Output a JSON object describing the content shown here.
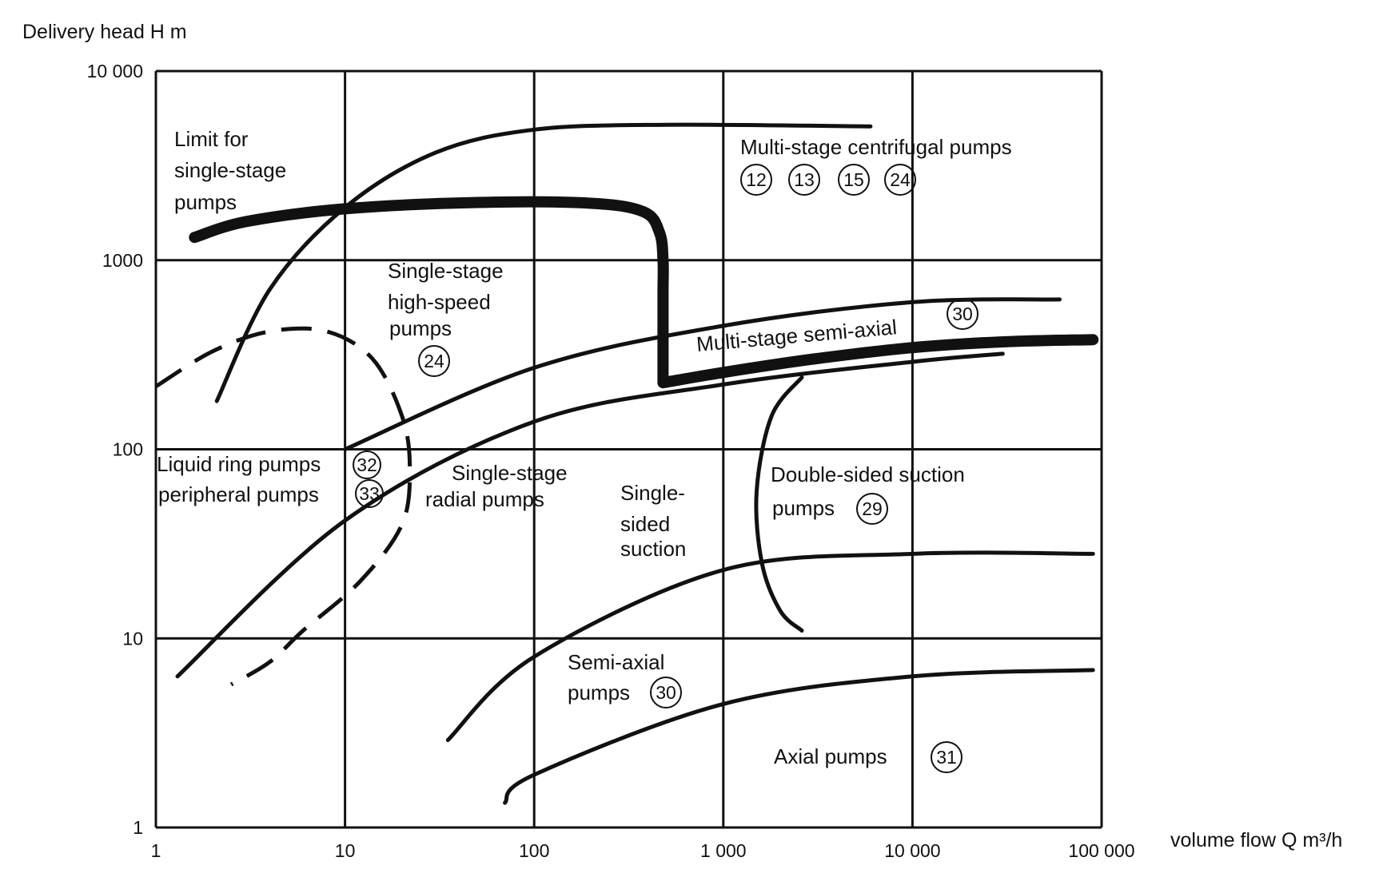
{
  "chart_data": {
    "type": "line",
    "title": "",
    "ylabel": "Delivery head H m",
    "xlabel": "volume flow Q m³/h",
    "x_scale": "log",
    "y_scale": "log",
    "xlim": [
      1,
      100000
    ],
    "ylim": [
      1,
      10000
    ],
    "grid": true,
    "x_ticks": [
      {
        "value": 1,
        "label": "1"
      },
      {
        "value": 10,
        "label": "10"
      },
      {
        "value": 100,
        "label": "100"
      },
      {
        "value": 1000,
        "label": "1 000"
      },
      {
        "value": 10000,
        "label": "10 000"
      },
      {
        "value": 100000,
        "label": "100 000"
      }
    ],
    "y_ticks": [
      {
        "value": 1,
        "label": "1"
      },
      {
        "value": 10,
        "label": "10"
      },
      {
        "value": 100,
        "label": "100"
      },
      {
        "value": 1000,
        "label": "1000"
      },
      {
        "value": 10000,
        "label": "10 000"
      }
    ],
    "curves": [
      {
        "id": "limit-single-stage",
        "style": "heavy",
        "points": [
          [
            1.6,
            1320
          ],
          [
            3,
            1600
          ],
          [
            10,
            1870
          ],
          [
            50,
            2020
          ],
          [
            200,
            2000
          ],
          [
            380,
            1800
          ],
          [
            460,
            1400
          ],
          [
            480,
            1000
          ],
          [
            480,
            700
          ],
          [
            480,
            500
          ],
          [
            480,
            360
          ],
          [
            480,
            250
          ],
          [
            480,
            225
          ]
        ]
      },
      {
        "id": "multi-stage-lower-boundary",
        "style": "heavy",
        "points": [
          [
            480,
            225
          ],
          [
            1000,
            255
          ],
          [
            3000,
            300
          ],
          [
            10000,
            345
          ],
          [
            30000,
            370
          ],
          [
            90000,
            380
          ]
        ]
      },
      {
        "id": "multi-stage-upper",
        "style": "normal",
        "points": [
          [
            2.1,
            180
          ],
          [
            4,
            700
          ],
          [
            10,
            1900
          ],
          [
            30,
            3700
          ],
          [
            100,
            4900
          ],
          [
            500,
            5200
          ],
          [
            6000,
            5100
          ]
        ]
      },
      {
        "id": "semi-axial-upper",
        "style": "normal",
        "points": [
          [
            10,
            100
          ],
          [
            100,
            270
          ],
          [
            1000,
            450
          ],
          [
            10000,
            600
          ],
          [
            60000,
            620
          ]
        ]
      },
      {
        "id": "single-stage-radial-upper",
        "style": "normal",
        "points": [
          [
            1.3,
            6.3
          ],
          [
            10,
            42
          ],
          [
            100,
            140
          ],
          [
            1000,
            220
          ],
          [
            10000,
            290
          ],
          [
            30000,
            320
          ]
        ]
      },
      {
        "id": "high-speed-dashed",
        "style": "dashed",
        "points": [
          [
            1,
            215
          ],
          [
            2,
            330
          ],
          [
            4,
            420
          ],
          [
            8,
            420
          ],
          [
            14,
            300
          ],
          [
            20,
            150
          ],
          [
            22,
            80
          ],
          [
            20,
            40
          ],
          [
            12,
            20
          ],
          [
            6,
            11
          ],
          [
            4,
            7.5
          ],
          [
            2.5,
            5.7
          ]
        ]
      },
      {
        "id": "double-sided-boundary",
        "style": "normal",
        "points": [
          [
            2600,
            240
          ],
          [
            1800,
            150
          ],
          [
            1500,
            60
          ],
          [
            1600,
            25
          ],
          [
            2000,
            14
          ],
          [
            2600,
            11
          ]
        ]
      },
      {
        "id": "semi-axial-lower",
        "style": "normal",
        "points": [
          [
            35,
            2.9
          ],
          [
            100,
            8
          ],
          [
            1000,
            23
          ],
          [
            10000,
            28
          ],
          [
            90000,
            28
          ]
        ]
      },
      {
        "id": "axial-upper",
        "style": "normal",
        "points": [
          [
            70,
            1.35
          ],
          [
            100,
            1.9
          ],
          [
            1000,
            4.5
          ],
          [
            10000,
            6.3
          ],
          [
            90000,
            6.8
          ]
        ]
      }
    ]
  },
  "labels": {
    "limit": [
      "Limit for",
      "single-stage",
      "pumps"
    ],
    "multi_centrifugal": "Multi-stage centrifugal pumps",
    "high_speed": [
      "Single-stage",
      "high-speed",
      "pumps"
    ],
    "multi_semi_axial": "Multi-stage  semi-axial",
    "liquid_ring": "Liquid ring pumps",
    "peripheral": "peripheral pumps",
    "radial": [
      "Single-stage",
      "radial pumps"
    ],
    "single_sided": [
      "Single-",
      "sided",
      "suction"
    ],
    "double_sided": [
      "Double-sided suction",
      "pumps"
    ],
    "semi_axial": [
      "Semi-axial",
      "pumps"
    ],
    "axial": "Axial pumps"
  },
  "badges": {
    "centrifugal": [
      "12",
      "13",
      "15",
      "24"
    ],
    "high_speed": "24",
    "multi_semi_axial": "30",
    "liquid_ring": "32",
    "peripheral": "33",
    "double_sided": "29",
    "semi_axial": "30",
    "axial": "31"
  }
}
